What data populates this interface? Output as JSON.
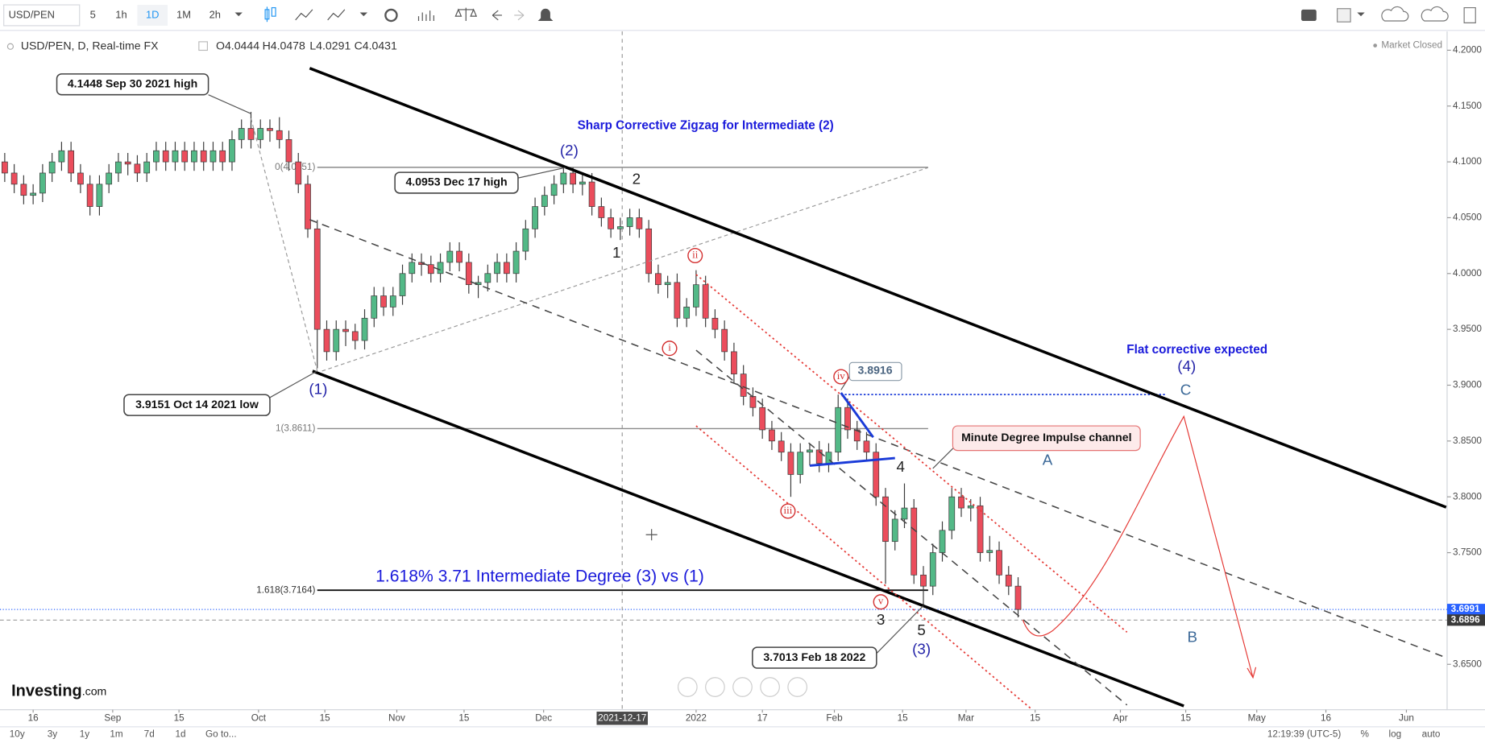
{
  "toolbar": {
    "symbol": "USD/PEN",
    "intervals": [
      "5",
      "1h",
      "1D",
      "1M",
      "2h"
    ]
  },
  "legend_bar": {
    "title": "USD/PEN, D, Real-time FX",
    "open": "O4.0444",
    "high": "H4.0478",
    "low": "L4.0291",
    "close": "C4.0431",
    "status": "Market Closed"
  },
  "bottom_bar": {
    "ranges": [
      "10y",
      "3y",
      "1y",
      "1m",
      "7d",
      "1d",
      "Go to..."
    ],
    "clock": "12:19:39 (UTC-5)",
    "scale_options": [
      "%",
      "log",
      "auto"
    ]
  },
  "logo": {
    "name": "Investing",
    "suffix": ".com"
  },
  "chart_data": {
    "type": "candlestick",
    "up_color": "#53b987",
    "down_color": "#eb4d5c",
    "xlim": [
      -0.5,
      152.3
    ],
    "ylim": [
      3.6093,
      4.2169
    ],
    "xticks": [
      {
        "value": 3,
        "label": "16"
      },
      {
        "value": 11.4,
        "label": "Sep"
      },
      {
        "value": 18.4,
        "label": "15"
      },
      {
        "value": 26.8,
        "label": "Oct"
      },
      {
        "value": 33.8,
        "label": "15"
      },
      {
        "value": 41.4,
        "label": "Nov"
      },
      {
        "value": 48.5,
        "label": "15"
      },
      {
        "value": 56.9,
        "label": "Dec"
      },
      {
        "value": 73,
        "label": "2022"
      },
      {
        "value": 80,
        "label": "17"
      },
      {
        "value": 87.6,
        "label": "Feb"
      },
      {
        "value": 94.8,
        "label": "15"
      },
      {
        "value": 101.5,
        "label": "Mar"
      },
      {
        "value": 108.8,
        "label": "15"
      },
      {
        "value": 117.8,
        "label": "Apr"
      },
      {
        "value": 124.7,
        "label": "15"
      },
      {
        "value": 132.2,
        "label": "May"
      },
      {
        "value": 139.5,
        "label": "16"
      },
      {
        "value": 148,
        "label": "Jun"
      }
    ],
    "crosshair": {
      "value": 65.2,
      "label": "2021-12-17"
    },
    "yticks": [
      {
        "value": 4.2,
        "label": "4.2000"
      },
      {
        "value": 4.15,
        "label": "4.1500"
      },
      {
        "value": 4.1,
        "label": "4.1000"
      },
      {
        "value": 4.05,
        "label": "4.0500"
      },
      {
        "value": 4.0,
        "label": "4.0000"
      },
      {
        "value": 3.95,
        "label": "3.9500"
      },
      {
        "value": 3.9,
        "label": "3.9000"
      },
      {
        "value": 3.85,
        "label": "3.8500"
      },
      {
        "value": 3.8,
        "label": "3.8000"
      },
      {
        "value": 3.75,
        "label": "3.7500"
      },
      {
        "value": 3.7,
        "label": "3.7000"
      },
      {
        "value": 3.65,
        "label": "3.6500"
      }
    ],
    "levels": [
      {
        "value": 4.0951,
        "label": "0(4.0951)",
        "color": "#8a8a8a"
      },
      {
        "value": 3.8611,
        "label": "1(3.8611)",
        "color": "#8a8a8a"
      },
      {
        "value": 3.7164,
        "label": "1.618(3.7164)",
        "color": "#111111"
      }
    ],
    "level_marker": {
      "value": 3.8916,
      "label": "3.8916"
    },
    "price_markers": [
      {
        "value": 3.6991,
        "label": "3.6991",
        "color": "#2962ff"
      },
      {
        "value": 3.6896,
        "label": "3.6896",
        "color": "#3a3a3a"
      }
    ],
    "candles": [
      [
        4.1,
        4.108,
        4.082,
        4.09
      ],
      [
        4.09,
        4.098,
        4.072,
        4.08
      ],
      [
        4.08,
        4.088,
        4.062,
        4.07
      ],
      [
        4.07,
        4.08,
        4.062,
        4.072
      ],
      [
        4.072,
        4.098,
        4.064,
        4.09
      ],
      [
        4.09,
        4.108,
        4.082,
        4.1
      ],
      [
        4.1,
        4.118,
        4.092,
        4.11
      ],
      [
        4.11,
        4.118,
        4.082,
        4.09
      ],
      [
        4.09,
        4.098,
        4.072,
        4.08
      ],
      [
        4.08,
        4.088,
        4.052,
        4.06
      ],
      [
        4.06,
        4.088,
        4.052,
        4.08
      ],
      [
        4.08,
        4.098,
        4.072,
        4.09
      ],
      [
        4.09,
        4.108,
        4.082,
        4.1
      ],
      [
        4.1,
        4.108,
        4.088,
        4.098
      ],
      [
        4.098,
        4.106,
        4.082,
        4.09
      ],
      [
        4.09,
        4.108,
        4.082,
        4.1
      ],
      [
        4.1,
        4.118,
        4.092,
        4.11
      ],
      [
        4.11,
        4.118,
        4.092,
        4.1
      ],
      [
        4.1,
        4.118,
        4.092,
        4.11
      ],
      [
        4.11,
        4.118,
        4.092,
        4.1
      ],
      [
        4.1,
        4.118,
        4.092,
        4.11
      ],
      [
        4.11,
        4.118,
        4.092,
        4.1
      ],
      [
        4.1,
        4.118,
        4.092,
        4.11
      ],
      [
        4.11,
        4.118,
        4.092,
        4.1
      ],
      [
        4.1,
        4.128,
        4.092,
        4.12
      ],
      [
        4.12,
        4.138,
        4.112,
        4.13
      ],
      [
        4.13,
        4.1448,
        4.112,
        4.12
      ],
      [
        4.12,
        4.138,
        4.112,
        4.13
      ],
      [
        4.13,
        4.138,
        4.118,
        4.128
      ],
      [
        4.128,
        4.14,
        4.112,
        4.12
      ],
      [
        4.12,
        4.128,
        4.092,
        4.1
      ],
      [
        4.1,
        4.108,
        4.072,
        4.08
      ],
      [
        4.08,
        4.088,
        4.032,
        4.04
      ],
      [
        4.04,
        4.048,
        3.9151,
        3.95
      ],
      [
        3.95,
        3.958,
        3.922,
        3.93
      ],
      [
        3.93,
        3.958,
        3.922,
        3.95
      ],
      [
        3.95,
        3.958,
        3.935,
        3.948
      ],
      [
        3.948,
        3.955,
        3.932,
        3.94
      ],
      [
        3.94,
        3.968,
        3.932,
        3.96
      ],
      [
        3.96,
        3.988,
        3.952,
        3.98
      ],
      [
        3.98,
        3.988,
        3.962,
        3.97
      ],
      [
        3.97,
        3.988,
        3.962,
        3.98
      ],
      [
        3.98,
        4.008,
        3.972,
        4.0
      ],
      [
        4.0,
        4.018,
        3.992,
        4.01
      ],
      [
        4.01,
        4.018,
        3.998,
        4.008
      ],
      [
        4.008,
        4.016,
        3.992,
        4.0
      ],
      [
        4.0,
        4.018,
        3.992,
        4.01
      ],
      [
        4.01,
        4.028,
        4.002,
        4.02
      ],
      [
        4.02,
        4.028,
        4.002,
        4.01
      ],
      [
        4.01,
        4.018,
        3.982,
        3.99
      ],
      [
        3.99,
        3.998,
        3.978,
        3.992
      ],
      [
        3.992,
        4.008,
        3.984,
        4.0
      ],
      [
        4.0,
        4.018,
        3.992,
        4.01
      ],
      [
        4.01,
        4.018,
        3.992,
        4.0
      ],
      [
        4.0,
        4.028,
        3.992,
        4.02
      ],
      [
        4.02,
        4.048,
        4.012,
        4.04
      ],
      [
        4.04,
        4.068,
        4.032,
        4.06
      ],
      [
        4.06,
        4.078,
        4.052,
        4.07
      ],
      [
        4.07,
        4.088,
        4.062,
        4.08
      ],
      [
        4.08,
        4.0953,
        4.072,
        4.09
      ],
      [
        4.09,
        4.095,
        4.072,
        4.08
      ],
      [
        4.08,
        4.09,
        4.07,
        4.082
      ],
      [
        4.082,
        4.09,
        4.052,
        4.06
      ],
      [
        4.06,
        4.068,
        4.042,
        4.05
      ],
      [
        4.05,
        4.058,
        4.032,
        4.04
      ],
      [
        4.04,
        4.05,
        4.03,
        4.042
      ],
      [
        4.042,
        4.058,
        4.034,
        4.05
      ],
      [
        4.05,
        4.058,
        4.032,
        4.04
      ],
      [
        4.04,
        4.048,
        3.992,
        4.0
      ],
      [
        4.0,
        4.008,
        3.982,
        3.99
      ],
      [
        3.99,
        3.998,
        3.978,
        3.992
      ],
      [
        3.992,
        4.0,
        3.952,
        3.96
      ],
      [
        3.96,
        3.978,
        3.952,
        3.97
      ],
      [
        3.97,
        4.003,
        3.962,
        3.99
      ],
      [
        3.99,
        3.998,
        3.952,
        3.96
      ],
      [
        3.96,
        3.968,
        3.942,
        3.95
      ],
      [
        3.95,
        3.958,
        3.922,
        3.93
      ],
      [
        3.93,
        3.938,
        3.902,
        3.91
      ],
      [
        3.91,
        3.918,
        3.882,
        3.89
      ],
      [
        3.89,
        3.898,
        3.872,
        3.88
      ],
      [
        3.88,
        3.888,
        3.852,
        3.86
      ],
      [
        3.86,
        3.868,
        3.842,
        3.85
      ],
      [
        3.85,
        3.858,
        3.832,
        3.84
      ],
      [
        3.84,
        3.848,
        3.8,
        3.82
      ],
      [
        3.82,
        3.848,
        3.812,
        3.84
      ],
      [
        3.84,
        3.848,
        3.828,
        3.842
      ],
      [
        3.842,
        3.85,
        3.822,
        3.83
      ],
      [
        3.83,
        3.848,
        3.822,
        3.84
      ],
      [
        3.84,
        3.8916,
        3.832,
        3.88
      ],
      [
        3.88,
        3.888,
        3.852,
        3.86
      ],
      [
        3.86,
        3.868,
        3.842,
        3.85
      ],
      [
        3.85,
        3.858,
        3.832,
        3.84
      ],
      [
        3.84,
        3.848,
        3.792,
        3.8
      ],
      [
        3.8,
        3.808,
        3.722,
        3.76
      ],
      [
        3.76,
        3.788,
        3.752,
        3.78
      ],
      [
        3.78,
        3.812,
        3.772,
        3.79
      ],
      [
        3.79,
        3.798,
        3.722,
        3.73
      ],
      [
        3.73,
        3.738,
        3.7013,
        3.72
      ],
      [
        3.72,
        3.758,
        3.712,
        3.75
      ],
      [
        3.75,
        3.778,
        3.742,
        3.77
      ],
      [
        3.77,
        3.808,
        3.762,
        3.8
      ],
      [
        3.8,
        3.808,
        3.782,
        3.79
      ],
      [
        3.79,
        3.798,
        3.778,
        3.792
      ],
      [
        3.792,
        3.8,
        3.742,
        3.75
      ],
      [
        3.75,
        3.765,
        3.742,
        3.752
      ],
      [
        3.752,
        3.76,
        3.722,
        3.73
      ],
      [
        3.73,
        3.738,
        3.712,
        3.72
      ],
      [
        3.72,
        3.728,
        3.692,
        3.6991
      ]
    ]
  },
  "annotations": [
    "4.1448 Sep 30 2021 high",
    "Sharp Corrective Zigzag for Intermediate (2)",
    "(2)",
    "2",
    "4.0953 Dec 17 high",
    "1",
    "ii",
    "i",
    "iv",
    "Flat corrective expected",
    "(4)",
    "C",
    "3.9151 Oct 14 2021 low",
    "(1)",
    "Minute Degree Impulse channel",
    "4",
    "A",
    "iii",
    "1.618% 3.71 Intermediate Degree (3) vs (1)",
    "v",
    "3",
    "5",
    "(3)",
    "B",
    "3.7013 Feb 18 2022"
  ]
}
